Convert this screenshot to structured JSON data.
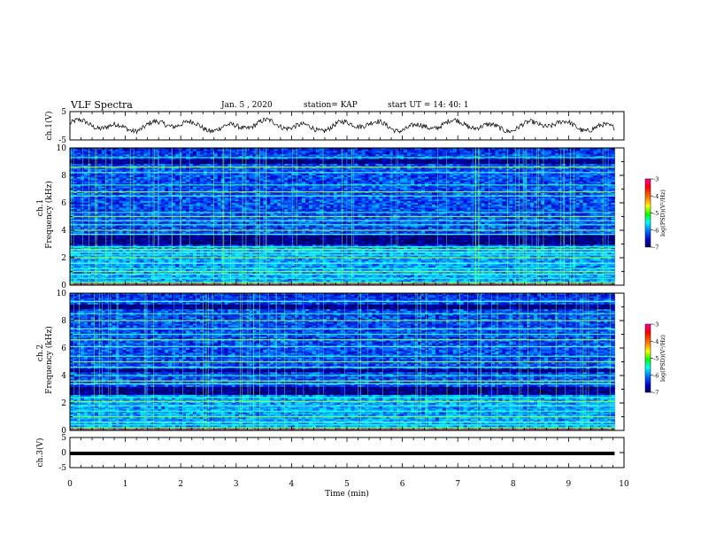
{
  "header": {
    "title": "VLF Spectra",
    "date": "Jan. 5 , 2020",
    "station": "station= KAP",
    "start": "start UT = 14: 40: 1"
  },
  "chart_data": [
    {
      "type": "line",
      "panel": "ch1-waveform",
      "ylabel": "ch.1(V)",
      "ylim": [
        -5,
        5
      ],
      "yticks": [
        "5",
        "-5"
      ],
      "xlim": [
        0,
        10
      ],
      "color": "#000000",
      "description_values": {
        "mean": 0,
        "amplitude_approx": 2.5
      }
    },
    {
      "type": "heatmap",
      "panel": "ch1-spectrogram",
      "ylabel_top": "ch.1",
      "ylabel": "Frequency (kHz)",
      "ylim": [
        0,
        10
      ],
      "yticks": [
        "0",
        "2",
        "4",
        "6",
        "8",
        "10"
      ],
      "xlim": [
        0,
        9.83
      ],
      "colorbar": {
        "label": "log(PSD)(V²/Hz)",
        "ticks": [
          "-3",
          "-4",
          "-5",
          "-6",
          "-7"
        ],
        "range": [
          -7,
          -3
        ],
        "colors": [
          "#ff00a0",
          "#ff0000",
          "#ff8000",
          "#ffff00",
          "#00ff00",
          "#00ffff",
          "#0060ff",
          "#0000c0",
          "#000060"
        ]
      },
      "dark_bands_khz": [
        [
          3.0,
          3.6
        ],
        [
          8.8,
          9.2
        ]
      ],
      "bright_lines_khz": [
        0.2,
        0.5,
        0.8,
        1.0,
        1.2,
        1.6,
        2.0,
        2.2,
        2.4,
        2.6,
        2.8,
        3.7,
        4.0,
        4.4,
        4.7,
        5.0,
        5.3,
        6.5,
        6.8,
        7.3,
        8.2,
        8.6,
        9.3
      ]
    },
    {
      "type": "heatmap",
      "panel": "ch2-spectrogram",
      "ylabel_top": "ch.2",
      "ylabel": "Frequency (kHz)",
      "ylim": [
        0,
        10
      ],
      "yticks": [
        "0",
        "2",
        "4",
        "6",
        "8",
        "10"
      ],
      "xlim": [
        0,
        9.83
      ],
      "colorbar": {
        "label": "log(PSD)(V²/Hz)",
        "ticks": [
          "-3",
          "-4",
          "-5",
          "-6",
          "-7"
        ],
        "range": [
          -7,
          -3
        ],
        "colors": [
          "#ff00a0",
          "#ff0000",
          "#ff8000",
          "#ffff00",
          "#00ff00",
          "#00ffff",
          "#0060ff",
          "#0000c0",
          "#000060"
        ]
      },
      "dark_bands_khz": [
        [
          2.6,
          3.2
        ],
        [
          4.2,
          4.5
        ],
        [
          8.8,
          9.2
        ]
      ],
      "bright_lines_khz": [
        0.2,
        0.4,
        0.6,
        1.0,
        1.4,
        1.8,
        2.1,
        2.4,
        3.4,
        3.6,
        4.0,
        4.6,
        5.0,
        5.4,
        6.1,
        6.6,
        7.0,
        7.4,
        8.0,
        8.5,
        9.4
      ]
    },
    {
      "type": "line",
      "panel": "ch3-waveform",
      "ylabel": "ch.3(V)",
      "ylim": [
        -5,
        5
      ],
      "yticks": [
        "5",
        "0",
        "-5"
      ],
      "xlim": [
        0,
        9.83
      ],
      "constant_value": 0,
      "color": "#000000"
    }
  ],
  "xaxis": {
    "label": "Time (min)",
    "ticks": [
      "0",
      "1",
      "2",
      "3",
      "4",
      "5",
      "6",
      "7",
      "8",
      "9",
      "10"
    ],
    "range": [
      0,
      10
    ]
  }
}
